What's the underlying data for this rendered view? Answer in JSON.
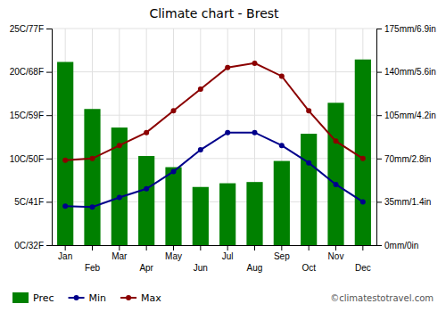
{
  "chart_data": {
    "type": "bar",
    "title": "Climate chart - Brest",
    "categories": [
      "Jan",
      "Feb",
      "Mar",
      "Apr",
      "May",
      "Jun",
      "Jul",
      "Aug",
      "Sep",
      "Oct",
      "Nov",
      "Dec"
    ],
    "series": [
      {
        "name": "Prec",
        "type": "bar",
        "axis": "y2",
        "color": "#008000",
        "values": [
          148,
          110,
          95,
          72,
          63,
          47,
          50,
          51,
          68,
          90,
          115,
          150
        ]
      },
      {
        "name": "Min",
        "type": "line",
        "marker": "circle",
        "color": "#00008B",
        "values": [
          4.5,
          4.4,
          5.5,
          6.5,
          8.5,
          11.0,
          13.0,
          13.0,
          11.5,
          9.5,
          7.0,
          5.0
        ]
      },
      {
        "name": "Max",
        "type": "line",
        "marker": "circle",
        "color": "#8B0000",
        "values": [
          9.8,
          10.0,
          11.5,
          13.0,
          15.5,
          18.0,
          20.5,
          21.0,
          19.5,
          15.5,
          12.0,
          10.0
        ]
      }
    ],
    "ylim": [
      0,
      25
    ],
    "yticks": [
      {
        "value": 0,
        "label": "0C/32F"
      },
      {
        "value": 5,
        "label": "5C/41F"
      },
      {
        "value": 10,
        "label": "10C/50F"
      },
      {
        "value": 15,
        "label": "15C/59F"
      },
      {
        "value": 20,
        "label": "20C/68F"
      },
      {
        "value": 25,
        "label": "25C/77F"
      }
    ],
    "y2lim": [
      0,
      175
    ],
    "y2ticks": [
      {
        "value": 0,
        "label": "0mm/0in"
      },
      {
        "value": 35,
        "label": "35mm/1.4in"
      },
      {
        "value": 70,
        "label": "70mm/2.8in"
      },
      {
        "value": 105,
        "label": "105mm/4.2in"
      },
      {
        "value": 140,
        "label": "140mm/5.6in"
      },
      {
        "value": 175,
        "label": "175mm/6.9in"
      }
    ],
    "grid": true,
    "legend": "bottom",
    "annotations": [
      "©climatestotravel.com"
    ]
  }
}
